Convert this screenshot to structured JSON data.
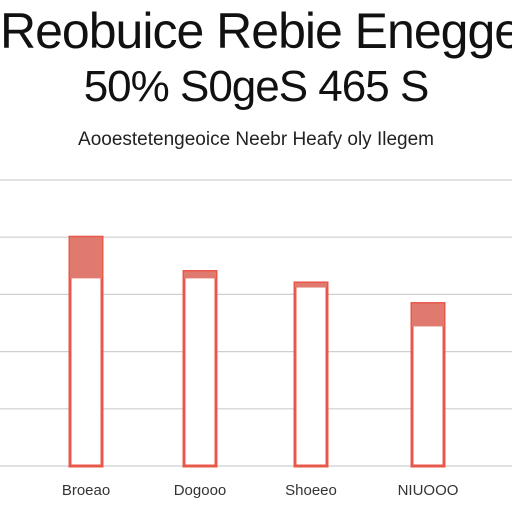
{
  "header": {
    "title_line1": "Reobuice Rebie Enegge",
    "title_line2": "50% S0geS 465 S",
    "subtitle": "Aooestetengeoice Neebr Heafy oly Ilegem"
  },
  "colors": {
    "bar_fill": "#e07a6e",
    "bar_outline": "#e8584a",
    "grid": "#cfcfcf"
  },
  "chart_data": {
    "type": "bar",
    "title": "Reobuice Rebie Enegge",
    "subtitle": "Aooestetengeoice Neebr Heafy oly Ilegem",
    "categories": [
      "Broeao",
      "Dogooo",
      "Shoeeo",
      "NIUOOO"
    ],
    "series": [
      {
        "values": [
          100,
          85,
          80,
          71
        ]
      },
      {
        "values": [
          82,
          82,
          78,
          61
        ]
      }
    ],
    "ylim": [
      0,
      125
    ],
    "grid": true,
    "xlabel": "",
    "ylabel": ""
  }
}
